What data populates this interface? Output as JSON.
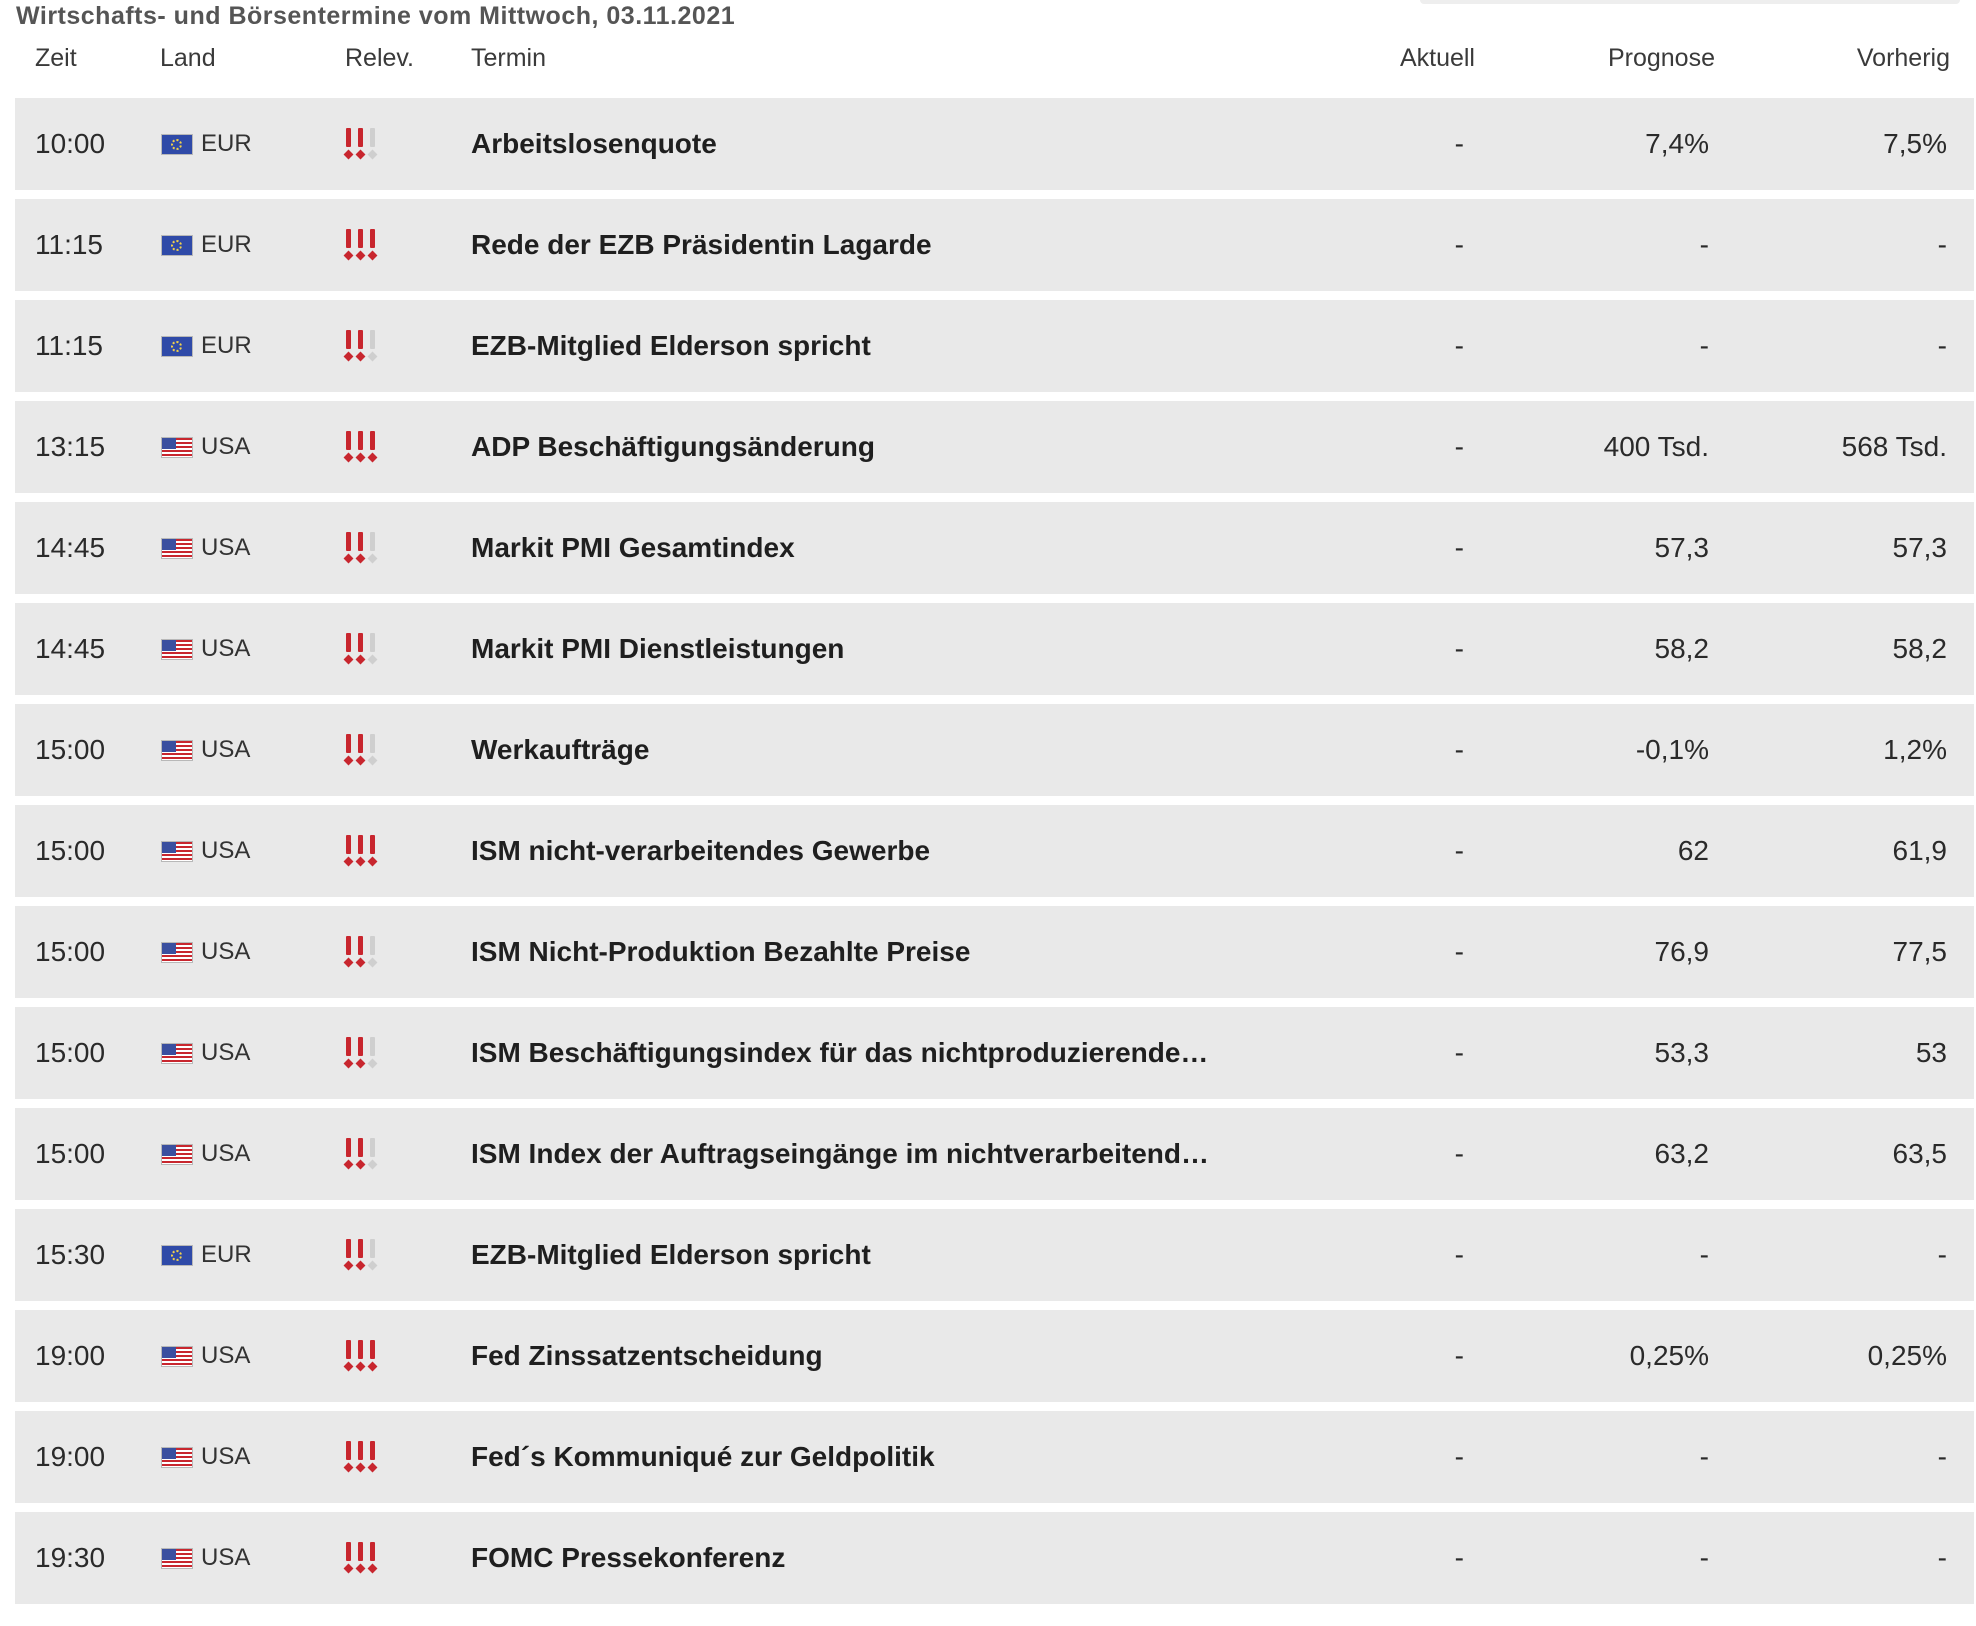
{
  "title": "Wirtschafts- und Börsentermine vom Mittwoch, 03.11.2021",
  "columns": {
    "zeit": "Zeit",
    "land": "Land",
    "relev": "Relev.",
    "termin": "Termin",
    "aktuell": "Aktuell",
    "prognose": "Prognose",
    "vorherig": "Vorherig"
  },
  "colors": {
    "relevance_active": "#c8262e",
    "relevance_inactive": "#cfcfcf",
    "row_background": "#e9e9e9"
  },
  "rows": [
    {
      "time": "10:00",
      "flag": "eu-flag-icon",
      "country": "EUR",
      "relevance": 2,
      "event": "Arbeitslosenquote",
      "actual": "-",
      "forecast": "7,4%",
      "previous": "7,5%"
    },
    {
      "time": "11:15",
      "flag": "eu-flag-icon",
      "country": "EUR",
      "relevance": 3,
      "event": "Rede der EZB Präsidentin Lagarde",
      "actual": "-",
      "forecast": "-",
      "previous": "-"
    },
    {
      "time": "11:15",
      "flag": "eu-flag-icon",
      "country": "EUR",
      "relevance": 2,
      "event": "EZB-Mitglied Elderson spricht",
      "actual": "-",
      "forecast": "-",
      "previous": "-"
    },
    {
      "time": "13:15",
      "flag": "us-flag-icon",
      "country": "USA",
      "relevance": 3,
      "event": "ADP Beschäftigungsänderung",
      "actual": "-",
      "forecast": "400 Tsd.",
      "previous": "568 Tsd."
    },
    {
      "time": "14:45",
      "flag": "us-flag-icon",
      "country": "USA",
      "relevance": 2,
      "event": "Markit PMI Gesamtindex",
      "actual": "-",
      "forecast": "57,3",
      "previous": "57,3"
    },
    {
      "time": "14:45",
      "flag": "us-flag-icon",
      "country": "USA",
      "relevance": 2,
      "event": "Markit PMI Dienstleistungen",
      "actual": "-",
      "forecast": "58,2",
      "previous": "58,2"
    },
    {
      "time": "15:00",
      "flag": "us-flag-icon",
      "country": "USA",
      "relevance": 2,
      "event": "Werkaufträge",
      "actual": "-",
      "forecast": "-0,1%",
      "previous": "1,2%"
    },
    {
      "time": "15:00",
      "flag": "us-flag-icon",
      "country": "USA",
      "relevance": 3,
      "event": "ISM nicht-verarbeitendes Gewerbe",
      "actual": "-",
      "forecast": "62",
      "previous": "61,9"
    },
    {
      "time": "15:00",
      "flag": "us-flag-icon",
      "country": "USA",
      "relevance": 2,
      "event": "ISM Nicht-Produktion Bezahlte Preise",
      "actual": "-",
      "forecast": "76,9",
      "previous": "77,5"
    },
    {
      "time": "15:00",
      "flag": "us-flag-icon",
      "country": "USA",
      "relevance": 2,
      "event": "ISM Beschäftigungsindex für das nichtproduzierende G…",
      "actual": "-",
      "forecast": "53,3",
      "previous": "53"
    },
    {
      "time": "15:00",
      "flag": "us-flag-icon",
      "country": "USA",
      "relevance": 2,
      "event": "ISM Index der Auftragseingänge im nichtverarbeitende…",
      "actual": "-",
      "forecast": "63,2",
      "previous": "63,5"
    },
    {
      "time": "15:30",
      "flag": "eu-flag-icon",
      "country": "EUR",
      "relevance": 2,
      "event": "EZB-Mitglied Elderson spricht",
      "actual": "-",
      "forecast": "-",
      "previous": "-"
    },
    {
      "time": "19:00",
      "flag": "us-flag-icon",
      "country": "USA",
      "relevance": 3,
      "event": "Fed Zinssatzentscheidung",
      "actual": "-",
      "forecast": "0,25%",
      "previous": "0,25%"
    },
    {
      "time": "19:00",
      "flag": "us-flag-icon",
      "country": "USA",
      "relevance": 3,
      "event": "Fed´s Kommuniqué zur Geldpolitik",
      "actual": "-",
      "forecast": "-",
      "previous": "-"
    },
    {
      "time": "19:30",
      "flag": "us-flag-icon",
      "country": "USA",
      "relevance": 3,
      "event": "FOMC Pressekonferenz",
      "actual": "-",
      "forecast": "-",
      "previous": "-"
    }
  ]
}
